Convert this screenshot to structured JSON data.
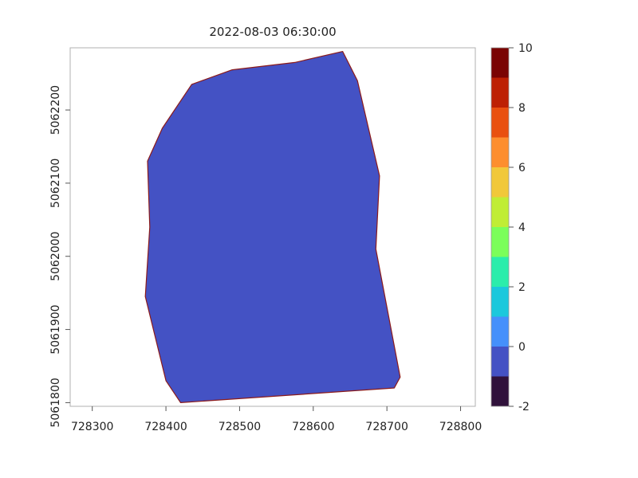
{
  "chart_data": {
    "type": "heatmap",
    "title": "2022-08-03 06:30:00",
    "xlabel": "",
    "ylabel": "",
    "xlim": [
      728270,
      728820
    ],
    "ylim": [
      5061795,
      5062285
    ],
    "x_ticks": [
      728300,
      728400,
      728500,
      728600,
      728700,
      728800
    ],
    "x_tick_labels": [
      "728300",
      "728400",
      "728500",
      "728600",
      "728700",
      "728800"
    ],
    "y_ticks": [
      5061800,
      5061900,
      5062000,
      5062100,
      5062200
    ],
    "y_tick_labels": [
      "5061800",
      "5061900",
      "5062000",
      "5062100",
      "5062200"
    ],
    "grid": false,
    "region": {
      "value": -0.5,
      "fill_color": "#4452c4",
      "border_color": "#8b1a1a",
      "polygon": [
        [
          728640,
          5062280
        ],
        [
          728660,
          5062240
        ],
        [
          728690,
          5062110
        ],
        [
          728685,
          5062010
        ],
        [
          728718,
          5061835
        ],
        [
          728710,
          5061820
        ],
        [
          728420,
          5061800
        ],
        [
          728400,
          5061830
        ],
        [
          728372,
          5061945
        ],
        [
          728378,
          5062040
        ],
        [
          728375,
          5062130
        ],
        [
          728395,
          5062175
        ],
        [
          728435,
          5062235
        ],
        [
          728490,
          5062255
        ],
        [
          728575,
          5062265
        ]
      ]
    },
    "colorbar": {
      "range": [
        -2,
        10
      ],
      "ticks": [
        -2,
        0,
        2,
        4,
        6,
        8,
        10
      ],
      "tick_labels": [
        "-2",
        "0",
        "2",
        "4",
        "6",
        "8",
        "10"
      ],
      "levels": [
        {
          "from": -2,
          "to": -1,
          "color": "#30123b"
        },
        {
          "from": -1,
          "to": 0,
          "color": "#4452c4"
        },
        {
          "from": 0,
          "to": 1,
          "color": "#4590fb"
        },
        {
          "from": 1,
          "to": 2,
          "color": "#1bc8dc"
        },
        {
          "from": 2,
          "to": 3,
          "color": "#2bedab"
        },
        {
          "from": 3,
          "to": 4,
          "color": "#7bfe5a"
        },
        {
          "from": 4,
          "to": 5,
          "color": "#c0ed35"
        },
        {
          "from": 5,
          "to": 6,
          "color": "#f1c83a"
        },
        {
          "from": 6,
          "to": 7,
          "color": "#fd8e2e"
        },
        {
          "from": 7,
          "to": 8,
          "color": "#e9500f"
        },
        {
          "from": 8,
          "to": 9,
          "color": "#bd2003"
        },
        {
          "from": 9,
          "to": 10,
          "color": "#7a0403"
        }
      ]
    }
  }
}
